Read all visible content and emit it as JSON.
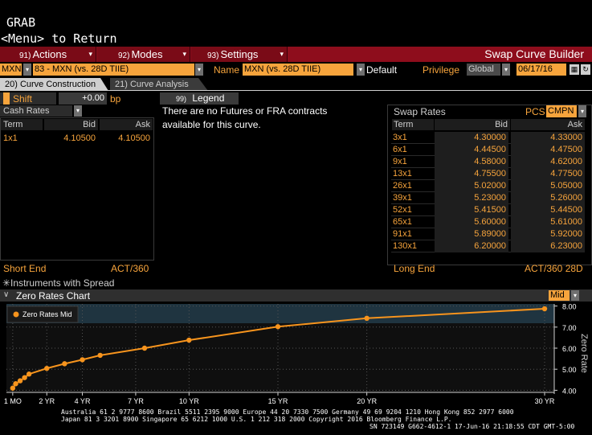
{
  "header": {
    "title": "GRAB",
    "menu_hint": "<Menu> to Return"
  },
  "menubar": {
    "actions": {
      "num": "91)",
      "label": "Actions"
    },
    "modes": {
      "num": "92)",
      "label": "Modes"
    },
    "settings": {
      "num": "93)",
      "label": "Settings"
    },
    "app_title": "Swap Curve Builder"
  },
  "selectors": {
    "currency": "MXN",
    "curve": "83 - MXN (vs. 28D TIIE)",
    "name_label": "Name",
    "name_value": "MXN (vs. 28D TIIE)",
    "default_label": "Default",
    "privilege_label": "Privilege",
    "privilege_value": "Global",
    "date": "06/17/16"
  },
  "tabs": {
    "construction": "20) Curve Construction",
    "analysis": "21) Curve Analysis"
  },
  "controls": {
    "shift_label": "Shift",
    "shift_value": "+0.00",
    "shift_unit": "bp",
    "legend_num": "99)",
    "legend_label": "Legend"
  },
  "cash_rates": {
    "title": "Cash Rates",
    "headers": {
      "term": "Term",
      "bid": "Bid",
      "ask": "Ask"
    },
    "rows": [
      {
        "term": "1x1",
        "bid": "4.10500",
        "ask": "4.10500"
      }
    ],
    "short_end_label": "Short End",
    "short_end_value": "ACT/360"
  },
  "futures_message": "There are no Futures or FRA contracts available for this curve.",
  "swap_rates": {
    "title": "Swap Rates",
    "pcs_label": "PCS",
    "pcs_value": "CMPN",
    "headers": {
      "term": "Term",
      "bid": "Bid",
      "ask": "Ask"
    },
    "rows": [
      {
        "term": "3x1",
        "bid": "4.30000",
        "ask": "4.33000"
      },
      {
        "term": "6x1",
        "bid": "4.44500",
        "ask": "4.47500"
      },
      {
        "term": "9x1",
        "bid": "4.58000",
        "ask": "4.62000"
      },
      {
        "term": "13x1",
        "bid": "4.75500",
        "ask": "4.77500"
      },
      {
        "term": "26x1",
        "bid": "5.02000",
        "ask": "5.05000"
      },
      {
        "term": "39x1",
        "bid": "5.23000",
        "ask": "5.26000"
      },
      {
        "term": "52x1",
        "bid": "5.41500",
        "ask": "5.44500"
      },
      {
        "term": "65x1",
        "bid": "5.60000",
        "ask": "5.61000"
      },
      {
        "term": "91x1",
        "bid": "5.89000",
        "ask": "5.92000"
      },
      {
        "term": "130x1",
        "bid": "6.20000",
        "ask": "6.23000"
      }
    ],
    "long_end_label": "Long End",
    "long_end_value": "ACT/360 28D"
  },
  "instruments_note": "✳Instruments with Spread",
  "chart": {
    "title": "Zero Rates Chart",
    "mode_value": "Mid",
    "colors": {
      "line": "#f7941d",
      "plot_bg": "#0f0f0f",
      "band": "#1f3440"
    }
  },
  "chart_data": {
    "type": "line",
    "title": "Zero Rates Chart",
    "ylabel": "Zero Rate",
    "xlabel": "",
    "x_tick_labels": [
      "1 MO",
      "2 YR",
      "4 YR",
      "7 YR",
      "10 YR",
      "15 YR",
      "20 YR",
      "30 YR"
    ],
    "x_tick_years": [
      0.083,
      2,
      4,
      7,
      10,
      15,
      20,
      30
    ],
    "y_tick_labels": [
      "4.00",
      "5.00",
      "6.00",
      "7.00",
      "8.00"
    ],
    "ylim": [
      3.9,
      8.1
    ],
    "legend": "top-left",
    "series": [
      {
        "name": "Zero Rates Mid",
        "x_years": [
          0.083,
          0.25,
          0.5,
          0.75,
          1.0,
          2.0,
          3.0,
          4.0,
          5.0,
          7.5,
          10.0,
          15.0,
          20.0,
          30.0
        ],
        "y": [
          4.1,
          4.31,
          4.45,
          4.6,
          4.77,
          5.04,
          5.26,
          5.45,
          5.66,
          6.0,
          6.38,
          7.02,
          7.42,
          7.87
        ]
      }
    ],
    "grid": true
  },
  "footer": {
    "line1": "Australia 61 2 9777 8600 Brazil 5511 2395 9000 Europe 44 20 7330 7500 Germany 49 69 9204 1210 Hong Kong 852 2977 6000",
    "line2": "Japan 81 3 3201 8900        Singapore 65 6212 1000        U.S. 1 212 318 2000              Copyright 2016 Bloomberg Finance L.P.",
    "line3": "SN 723149 G662-4612-1 17-Jun-16 21:18:55 CDT  GMT-5:00"
  }
}
